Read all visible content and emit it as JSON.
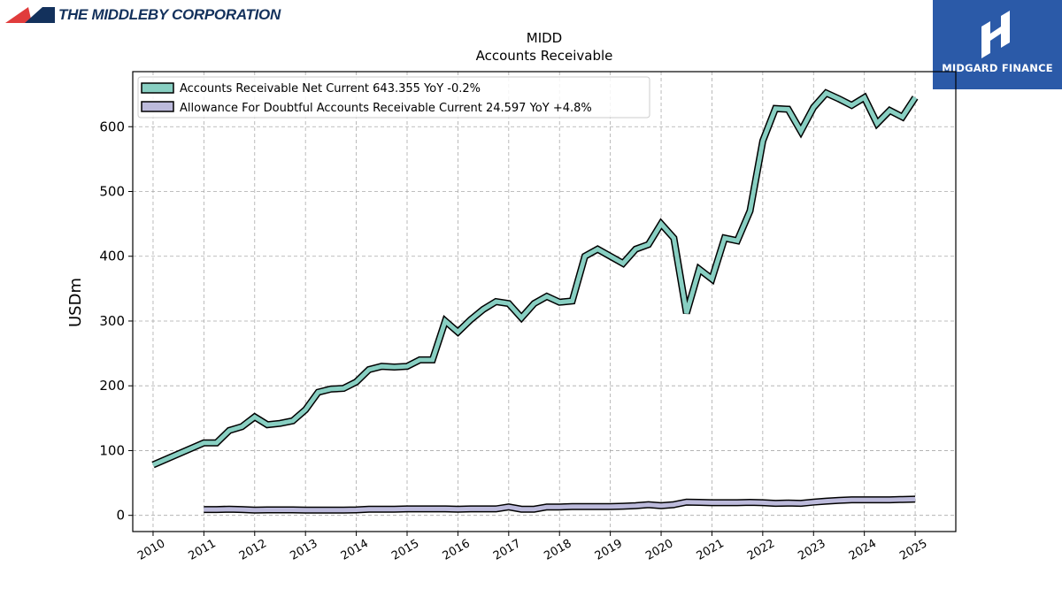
{
  "header": {
    "company_logo_text": "THE MIDDLEBY CORPORATION",
    "brand_name": "MIDGARD FINANCE",
    "colors": {
      "company_red": "#e03c3c",
      "company_navy": "#13315c",
      "brand_blue": "#2b5aa8"
    }
  },
  "chart_data": {
    "type": "line",
    "title": "MIDD",
    "subtitle": "Accounts Receivable",
    "xlabel": "",
    "ylabel": "USDm",
    "xlim": [
      2009.6,
      2025.8
    ],
    "ylim": [
      -25,
      685
    ],
    "grid": true,
    "legend_position": "upper-left",
    "x_ticks": [
      2010,
      2011,
      2012,
      2013,
      2014,
      2015,
      2016,
      2017,
      2018,
      2019,
      2020,
      2021,
      2022,
      2023,
      2024,
      2025
    ],
    "y_ticks": [
      0,
      100,
      200,
      300,
      400,
      500,
      600
    ],
    "series": [
      {
        "name": "Accounts Receivable Net Current",
        "legend_label": "Accounts Receivable Net Current  643.355 YoY -0.2%",
        "color": "#88cfc2",
        "x": [
          2010.0,
          2011.0,
          2011.25,
          2011.5,
          2011.75,
          2012.0,
          2012.25,
          2012.5,
          2012.75,
          2013.0,
          2013.25,
          2013.5,
          2013.75,
          2014.0,
          2014.25,
          2014.5,
          2014.75,
          2015.0,
          2015.25,
          2015.5,
          2015.75,
          2016.0,
          2016.25,
          2016.5,
          2016.75,
          2017.0,
          2017.25,
          2017.5,
          2017.75,
          2018.0,
          2018.25,
          2018.5,
          2018.75,
          2019.0,
          2019.25,
          2019.5,
          2019.75,
          2020.0,
          2020.25,
          2020.5,
          2020.75,
          2021.0,
          2021.25,
          2021.5,
          2021.75,
          2022.0,
          2022.25,
          2022.5,
          2022.75,
          2023.0,
          2023.25,
          2023.5,
          2023.75,
          2024.0,
          2024.25,
          2024.5,
          2024.75,
          2025.0
        ],
        "values": [
          78,
          112,
          112,
          131,
          137,
          152,
          140,
          142,
          146,
          163,
          190,
          195,
          196,
          206,
          225,
          230,
          229,
          230,
          240,
          240,
          300,
          283,
          302,
          318,
          330,
          327,
          305,
          327,
          338,
          329,
          331,
          400,
          411,
          400,
          389,
          411,
          418,
          450,
          428,
          312,
          380,
          365,
          428,
          424,
          470,
          578,
          628,
          627,
          593,
          630,
          652,
          643,
          633,
          645,
          605,
          625,
          615,
          645
        ]
      },
      {
        "name": "Allowance For Doubtful Accounts Receivable Current",
        "legend_label": "Allowance For Doubtful Accounts Receivable Current  24.597 YoY +4.8%",
        "color": "#bcbadb",
        "x": [
          2011.0,
          2011.25,
          2011.5,
          2011.75,
          2012.0,
          2012.25,
          2012.5,
          2012.75,
          2013.0,
          2013.25,
          2013.5,
          2013.75,
          2014.0,
          2014.25,
          2014.5,
          2014.75,
          2015.0,
          2015.25,
          2015.5,
          2015.75,
          2016.0,
          2016.25,
          2016.5,
          2016.75,
          2017.0,
          2017.25,
          2017.5,
          2017.75,
          2018.0,
          2018.25,
          2018.5,
          2018.75,
          2019.0,
          2019.25,
          2019.5,
          2019.75,
          2020.0,
          2020.25,
          2020.5,
          2020.75,
          2021.0,
          2021.25,
          2021.5,
          2021.75,
          2022.0,
          2022.25,
          2022.5,
          2022.75,
          2023.0,
          2023.25,
          2023.5,
          2023.75,
          2024.0,
          2024.25,
          2024.5,
          2024.75,
          2025.0
        ],
        "values": [
          9,
          9,
          9.5,
          9,
          8,
          8.5,
          8.5,
          8.5,
          8,
          8,
          8,
          8,
          8.5,
          9.5,
          9.5,
          9.5,
          10,
          10,
          10,
          10,
          9.5,
          10,
          10,
          10,
          13,
          9.5,
          9.5,
          13,
          13,
          13.5,
          13.5,
          13.5,
          13.5,
          14,
          15,
          16.5,
          15,
          16.5,
          20.5,
          20,
          19.5,
          19.5,
          19.5,
          20,
          19.5,
          18.5,
          19,
          18.5,
          20.5,
          22,
          23,
          24,
          24,
          24,
          24,
          24.5,
          25
        ]
      }
    ]
  }
}
